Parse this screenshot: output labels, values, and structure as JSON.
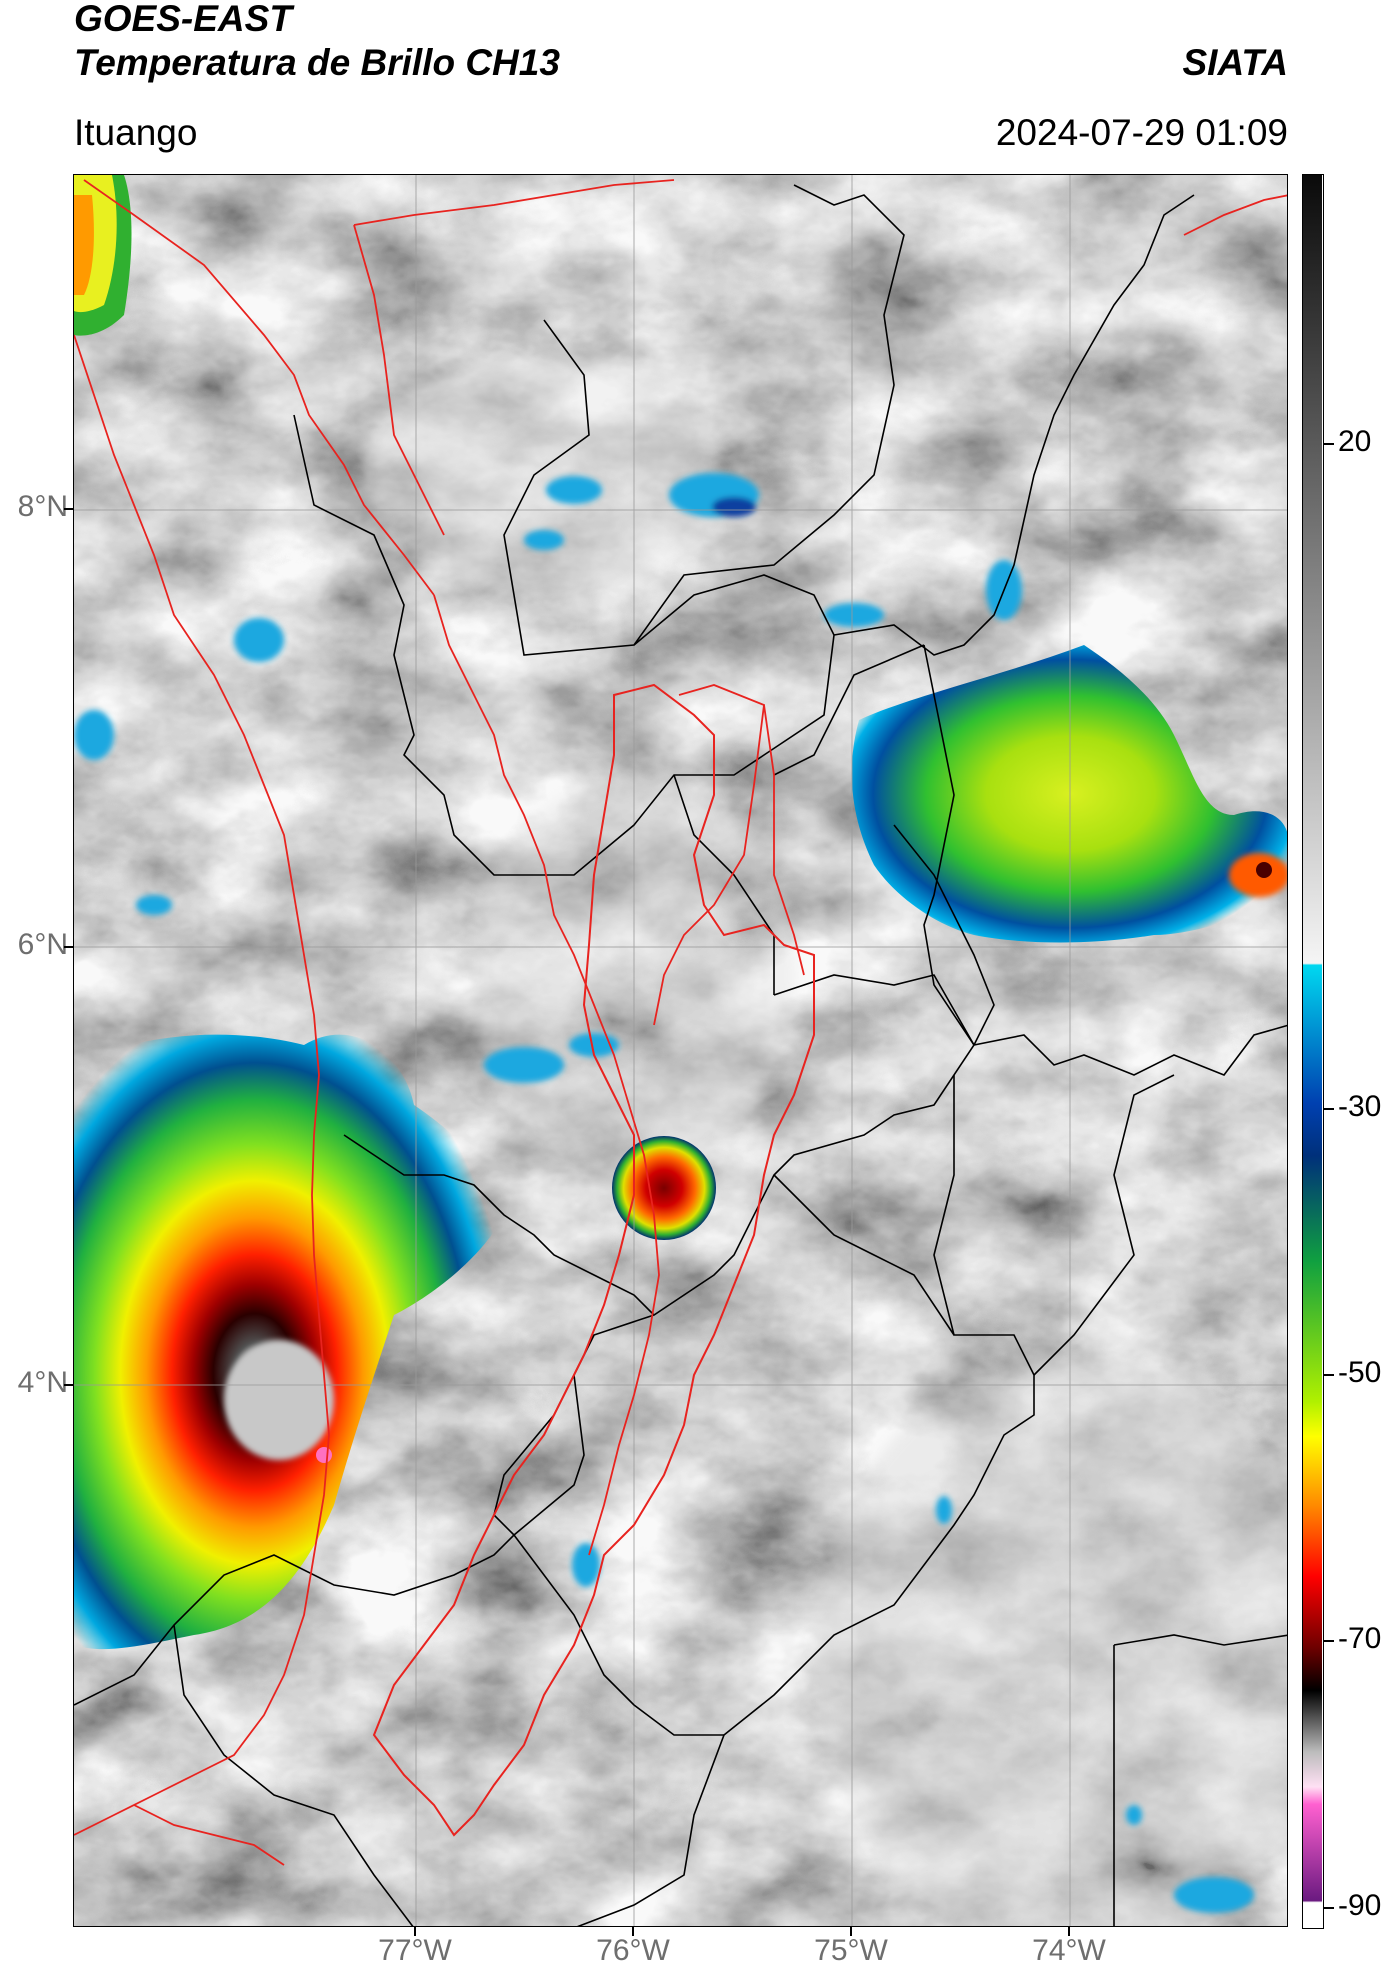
{
  "header": {
    "satellite": "GOES-EAST",
    "product": "Temperatura de Brillo CH13",
    "agency": "SIATA",
    "region": "Ituango",
    "timestamp": "2024-07-29 01:09"
  },
  "map": {
    "lat_labels": [
      "8°N",
      "6°N",
      "4°N"
    ],
    "lon_labels": [
      "77°W",
      "76°W",
      "75°W",
      "74°W"
    ],
    "lat_range_deg": [
      2.4,
      9.5
    ],
    "lon_range_deg": [
      -78.55,
      -73.05
    ],
    "grid": true,
    "boundary_colors": {
      "national_coast": "#e8231f",
      "departments": "#000000"
    }
  },
  "colorbar": {
    "unit_hint": "°C",
    "tick_labels": [
      "20",
      "-30",
      "-50",
      "-70",
      "-90"
    ],
    "stops": [
      "#1a1a1a",
      "#ffffff",
      "#00c8f0",
      "#0033a0",
      "#00a040",
      "#c8f000",
      "#ffd200",
      "#ff0000",
      "#5a0000",
      "#000000",
      "#c8c8c8",
      "#e060c0",
      "#7a1f8c",
      "#ffffff"
    ]
  },
  "colors": {
    "cloud_cold_core": "#1a0000",
    "cloud_warm": "#7a7a7a"
  }
}
